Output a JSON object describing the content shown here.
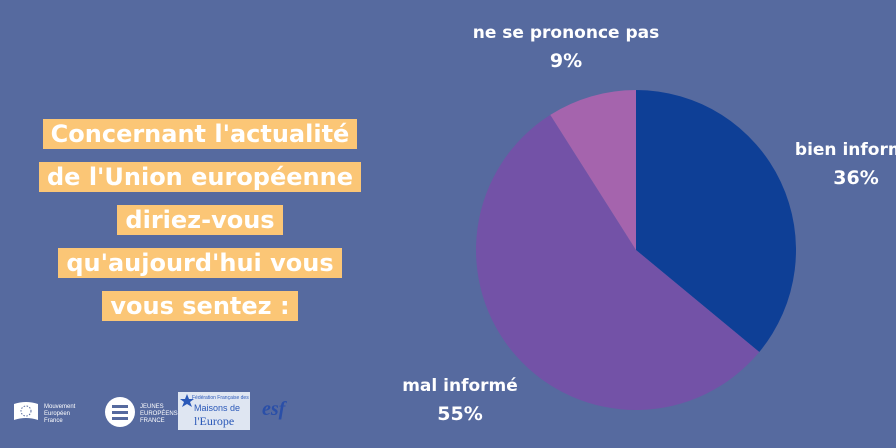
{
  "question": {
    "lines": [
      "Concernant l'actualité",
      "de l'Union européenne",
      "diriez-vous",
      "qu'aujourd'hui vous",
      "vous sentez :"
    ]
  },
  "chart_data": {
    "type": "pie",
    "slices": [
      {
        "label": "bien informé",
        "value": 36,
        "display": "36%",
        "color": "#0e3f96"
      },
      {
        "label": "mal informé",
        "value": 55,
        "display": "55%",
        "color": "#7352a7"
      },
      {
        "label": "ne se prononce pas",
        "value": 9,
        "display": "9%",
        "color": "#a564ad"
      }
    ]
  },
  "logos": {
    "mouvement": {
      "text1": "Mouvement",
      "text2": "Européen",
      "text3": "France",
      "icon": "eu-flag-icon"
    },
    "jeunes": {
      "text1": "JEUNES",
      "text2": "EUROPÉENS",
      "text3": "FRANCE",
      "icon": "jef-icon"
    },
    "maisons": {
      "text1": "Fédération Française des",
      "text2": "Maisons de",
      "text3": "l'Europe",
      "icon": "star-icon"
    },
    "esf": {
      "text": "esf"
    }
  },
  "colors": {
    "background": "#566a9f",
    "highlight": "#fbc676"
  }
}
